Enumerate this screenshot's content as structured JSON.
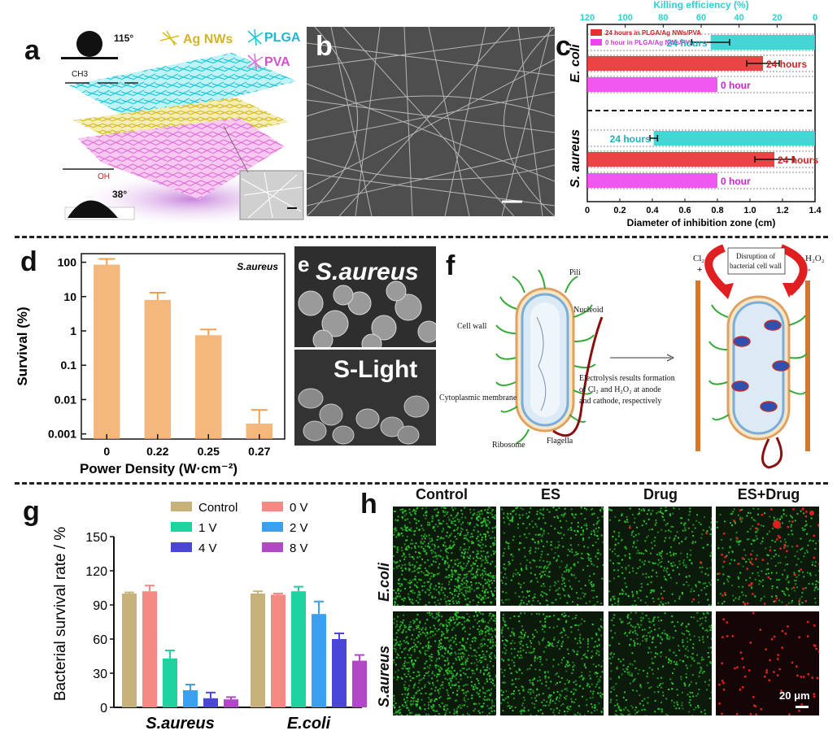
{
  "colors": {
    "orange": "#f0a050",
    "cyan": "#30d0d0",
    "red": "#e83030",
    "magenta": "#ee44ee",
    "ctrl": "#c8b27c",
    "v0": "#f58a84",
    "v1": "#1ed3a0",
    "v2": "#3aa0f0",
    "v4": "#4a47d8",
    "v8": "#b048c8"
  },
  "panel_a": {
    "label": "a",
    "contact_angle_top": "115°",
    "contact_angle_bottom": "38°",
    "legend": [
      "Ag NWs",
      "PLGA",
      "PVA"
    ],
    "formula_top": "CH3",
    "formula_bottom": "OH"
  },
  "panel_b": {
    "label": "b"
  },
  "panel_c": {
    "label": "c"
  },
  "panel_d": {
    "label": "d"
  },
  "panel_e": {
    "label": "e",
    "top_text": "S.aureus",
    "bottom_text": "S-Light"
  },
  "panel_f": {
    "label": "f",
    "labels": {
      "pili": "Pili",
      "nucleoid": "Nucleoid",
      "cell_wall": "Cell wall",
      "cytoplasmic": "Cytoplasmic membrane",
      "ribosome": "Ribosome",
      "flagella": "Flagella",
      "electrolysis_1": "Electrolysis results formation",
      "electrolysis_2": "of Cl₂ and H₂O₂ at anode",
      "electrolysis_3": "and cathode, respectively",
      "cl2": "Cl₂",
      "h2o2": "H₂O₂",
      "plus": "+",
      "minus": "-",
      "disruption_1": "Disruption of",
      "disruption_2": "bacterial cell wall"
    }
  },
  "panel_g": {
    "label": "g"
  },
  "panel_h": {
    "label": "h",
    "columns": [
      "Control",
      "ES",
      "Drug",
      "ES+Drug"
    ],
    "rows": [
      "E.coli",
      "S.aureus"
    ],
    "scale_bar": "20 μm"
  },
  "chart_data": [
    {
      "id": "c",
      "type": "bar",
      "orientation": "horizontal",
      "xlabel": "Diameter of inhibition zone (cm)",
      "xlim": [
        0,
        1.4
      ],
      "xticks": [
        "0",
        "0.2",
        "0.4",
        "0.6",
        "0.8",
        "1.0",
        "1.2",
        "1.4"
      ],
      "top_axis_label": "Killing efficiency (%)",
      "top_axis_ticks": [
        "120",
        "100",
        "80",
        "60",
        "40",
        "20",
        "0"
      ],
      "top_axis_lim": [
        120,
        0
      ],
      "legend": [
        "24 hours in PLGA/Ag NWs/PVA",
        "0 hour in PLGA/Ag NWs/PVA"
      ],
      "groups": [
        "E. coli",
        "S. aureus"
      ],
      "bars": [
        {
          "group": "E. coli",
          "series": "killing",
          "label": "24 hours",
          "axis": "top",
          "value": 55,
          "err": 10
        },
        {
          "group": "E. coli",
          "series": "24 hours",
          "label": "24 hours",
          "axis": "bottom",
          "value": 1.08,
          "err": 0.1
        },
        {
          "group": "E. coli",
          "series": "0 hour",
          "label": "0 hour",
          "axis": "bottom",
          "value": 0.8,
          "err": 0
        },
        {
          "group": "S. aureus",
          "series": "killing",
          "label": "24 hours",
          "axis": "top",
          "value": 85,
          "err": 2
        },
        {
          "group": "S. aureus",
          "series": "24 hours",
          "label": "24 hours",
          "axis": "bottom",
          "value": 1.15,
          "err": 0.12
        },
        {
          "group": "S. aureus",
          "series": "0 hour",
          "label": "0 hour",
          "axis": "bottom",
          "value": 0.8,
          "err": 0
        }
      ]
    },
    {
      "id": "d",
      "type": "bar",
      "scale": "log",
      "title": "S.aureus",
      "xlabel": "Power Density (W·cm⁻²)",
      "ylabel": "Survival (%)",
      "ylim": [
        0.001,
        100
      ],
      "yticks": [
        "0.001",
        "0.01",
        "0.1",
        "1",
        "10",
        "100"
      ],
      "categories": [
        "0",
        "0.22",
        "0.25",
        "0.27"
      ],
      "values": [
        85,
        8,
        0.75,
        0.002
      ],
      "errors_upper": [
        125,
        13,
        1.1,
        0.005
      ]
    },
    {
      "id": "g",
      "type": "bar",
      "ylabel": "Bacterial survival rate / %",
      "ylim": [
        0,
        150
      ],
      "yticks": [
        "0",
        "30",
        "60",
        "90",
        "120",
        "150"
      ],
      "categories": [
        "S.aureus",
        "E.coli"
      ],
      "series": [
        {
          "name": "Control",
          "values": [
            100,
            100
          ],
          "err": [
            1,
            2
          ]
        },
        {
          "name": "0 V",
          "values": [
            102,
            99
          ],
          "err": [
            5,
            1
          ]
        },
        {
          "name": "1 V",
          "values": [
            43,
            102
          ],
          "err": [
            7,
            4
          ]
        },
        {
          "name": "2 V",
          "values": [
            15,
            82
          ],
          "err": [
            5,
            11
          ]
        },
        {
          "name": "4 V",
          "values": [
            8,
            60
          ],
          "err": [
            5,
            5
          ]
        },
        {
          "name": "8 V",
          "values": [
            7,
            41
          ],
          "err": [
            2,
            5
          ]
        }
      ]
    }
  ]
}
